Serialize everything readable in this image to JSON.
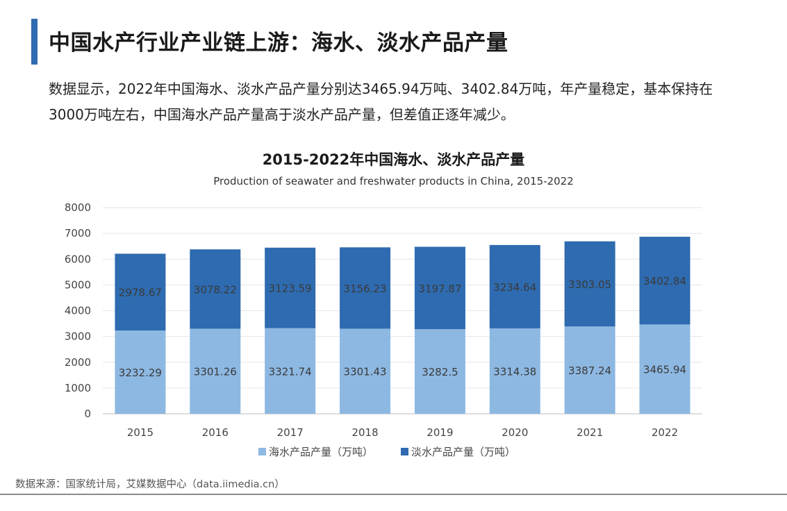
{
  "header": {
    "title": "中国水产行业产业链上游：海水、淡水产品产量"
  },
  "intro": {
    "text": "数据显示，2022年中国海水、淡水产品产量分别达3465.94万吨、3402.84万吨，年产量稳定，基本保持在3000万吨左右，中国海水产品产量高于淡水产品产量，但差值正逐年减少。"
  },
  "source": {
    "text": "数据来源：国家统计局，艾媒数据中心（data.iimedia.cn）"
  },
  "colors": {
    "seawater": "#8db8e2",
    "freshwater": "#2e6bb0",
    "accent": "#2e6bb0"
  },
  "chart_data": {
    "type": "bar",
    "stacked": true,
    "title": "2015-2022年中国海水、淡水产品产量",
    "subtitle": "Production of seawater and freshwater products in China, 2015-2022",
    "xlabel": "",
    "ylabel": "",
    "categories": [
      "2015",
      "2016",
      "2017",
      "2018",
      "2019",
      "2020",
      "2021",
      "2022"
    ],
    "ylim": [
      0,
      8000
    ],
    "yticks": [
      0,
      1000,
      2000,
      3000,
      4000,
      5000,
      6000,
      7000,
      8000
    ],
    "grid": true,
    "legend_position": "bottom",
    "series": [
      {
        "name": "海水产品产量（万吨）",
        "values": [
          3232.29,
          3301.26,
          3321.74,
          3301.43,
          3282.5,
          3314.38,
          3387.24,
          3465.94
        ]
      },
      {
        "name": "淡水产品产量（万吨）",
        "values": [
          2978.67,
          3078.22,
          3123.59,
          3156.23,
          3197.87,
          3234.64,
          3303.05,
          3402.84
        ]
      }
    ]
  }
}
